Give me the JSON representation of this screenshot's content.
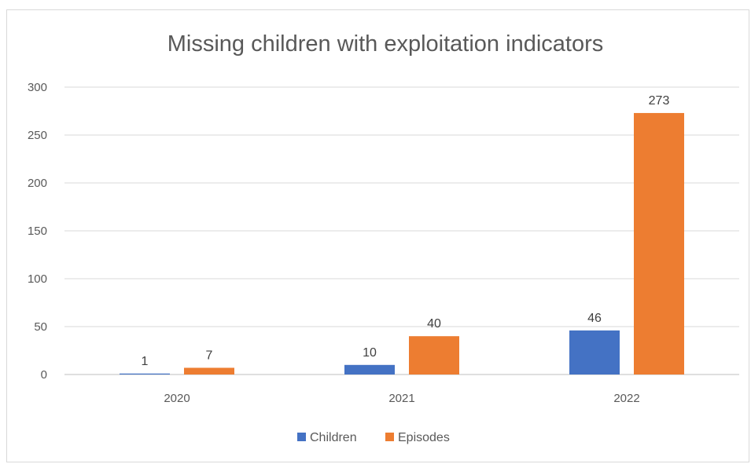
{
  "chart_data": {
    "type": "bar",
    "title": "Missing children with exploitation indicators",
    "xlabel": "",
    "ylabel": "",
    "categories": [
      "2020",
      "2021",
      "2022"
    ],
    "series": [
      {
        "name": "Children",
        "values": [
          1,
          10,
          46
        ],
        "color": "#4472c4"
      },
      {
        "name": "Episodes",
        "values": [
          7,
          40,
          273
        ],
        "color": "#ed7d31"
      }
    ],
    "ylim": [
      0,
      300
    ],
    "yticks": [
      0,
      50,
      100,
      150,
      200,
      250,
      300
    ],
    "grid": true,
    "legend_position": "bottom",
    "data_labels": true
  }
}
